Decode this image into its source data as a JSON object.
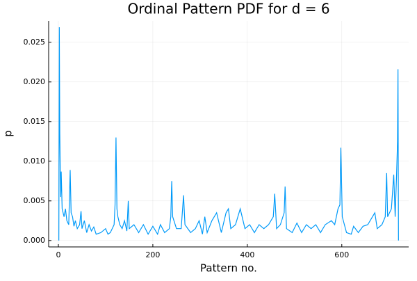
{
  "chart_data": {
    "type": "line",
    "title": "Ordinal Pattern PDF for d = 6",
    "xlabel": "Pattern no.",
    "ylabel": "p",
    "xlim": [
      -20.57,
      741.57
    ],
    "ylim": [
      -0.000807,
      0.0277
    ],
    "xticks": [
      0,
      200,
      400,
      600
    ],
    "yticks": [
      {
        "value": 0,
        "label": "0.000"
      },
      0.005,
      {
        "value": 0.01,
        "label": "0.010"
      },
      0.015,
      {
        "value": 0.02,
        "label": "0.020"
      },
      0.025
    ],
    "grid": true,
    "series": [
      {
        "color": "#009af9",
        "x": [
          1,
          2,
          3,
          4,
          5,
          6,
          8,
          10,
          12,
          15,
          18,
          22,
          25,
          27,
          30,
          33,
          36,
          40,
          45,
          48,
          50,
          55,
          60,
          65,
          70,
          75,
          80,
          90,
          100,
          105,
          110,
          118,
          120,
          122,
          124,
          126,
          130,
          135,
          140,
          145,
          148,
          150,
          160,
          170,
          180,
          190,
          200,
          210,
          216,
          225,
          235,
          238,
          240,
          242,
          250,
          260,
          265,
          268,
          280,
          290,
          298,
          305,
          310,
          315,
          325,
          335,
          345,
          355,
          360,
          365,
          375,
          385,
          395,
          405,
          415,
          425,
          435,
          445,
          455,
          458,
          462,
          470,
          478,
          480,
          483,
          495,
          505,
          515,
          525,
          535,
          545,
          555,
          565,
          578,
          585,
          592,
          596,
          598,
          601,
          610,
          620,
          625,
          635,
          645,
          655,
          665,
          670,
          675,
          685,
          692,
          695,
          697,
          705,
          710,
          713,
          716,
          718,
          719,
          720
        ],
        "values": [
          0.0,
          0.0269,
          0.0135,
          0.0087,
          0.0055,
          0.0087,
          0.004,
          0.0035,
          0.003,
          0.004,
          0.0025,
          0.002,
          0.0089,
          0.0035,
          0.003,
          0.0018,
          0.0025,
          0.0015,
          0.002,
          0.0037,
          0.0015,
          0.0025,
          0.001,
          0.002,
          0.0012,
          0.0017,
          0.0008,
          0.001,
          0.0015,
          0.0008,
          0.001,
          0.002,
          0.0045,
          0.013,
          0.004,
          0.003,
          0.002,
          0.0015,
          0.0025,
          0.0012,
          0.005,
          0.0015,
          0.002,
          0.001,
          0.002,
          0.0008,
          0.0018,
          0.0008,
          0.002,
          0.001,
          0.0015,
          0.003,
          0.0075,
          0.003,
          0.0015,
          0.0015,
          0.0057,
          0.002,
          0.001,
          0.0015,
          0.0025,
          0.0008,
          0.003,
          0.001,
          0.0025,
          0.0035,
          0.001,
          0.0035,
          0.004,
          0.0015,
          0.002,
          0.004,
          0.0015,
          0.002,
          0.001,
          0.002,
          0.0015,
          0.002,
          0.003,
          0.0059,
          0.0015,
          0.002,
          0.0035,
          0.0068,
          0.0015,
          0.001,
          0.0022,
          0.001,
          0.002,
          0.0015,
          0.002,
          0.001,
          0.002,
          0.0025,
          0.002,
          0.004,
          0.0045,
          0.0117,
          0.003,
          0.001,
          0.0008,
          0.0018,
          0.001,
          0.0018,
          0.002,
          0.003,
          0.0035,
          0.0015,
          0.002,
          0.003,
          0.0085,
          0.003,
          0.004,
          0.0083,
          0.003,
          0.0083,
          0.0125,
          0.0216,
          0.0
        ]
      }
    ]
  }
}
